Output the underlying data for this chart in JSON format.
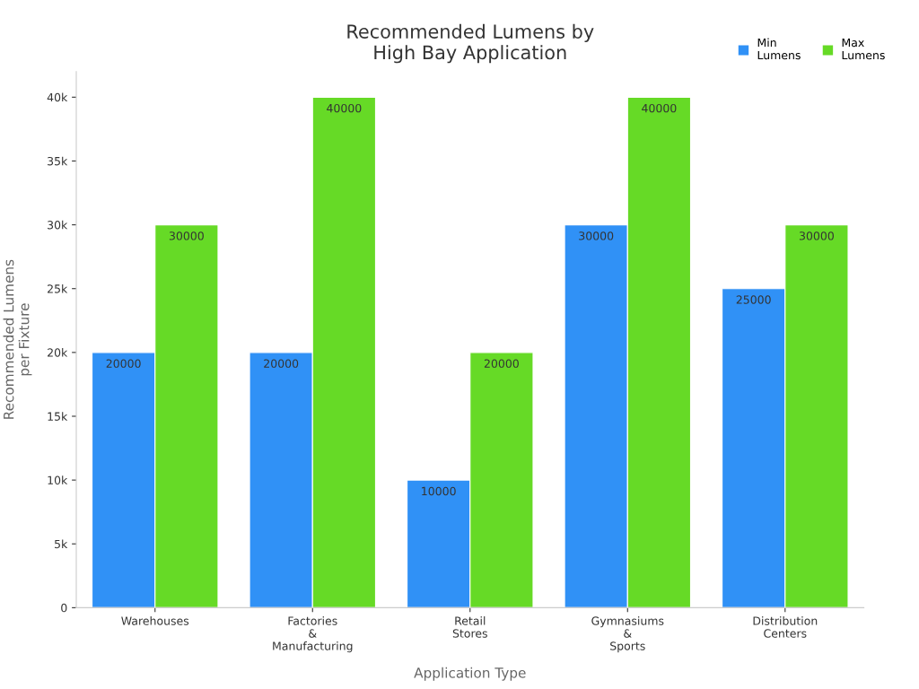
{
  "chart_data": {
    "type": "bar",
    "title": "Recommended Lumens by\nHigh Bay Application",
    "xlabel": "Application Type",
    "ylabel": "Recommended Lumens\nper Fixture",
    "categories": [
      "Warehouses",
      "Factories\n&\nManufacturing",
      "Retail\nStores",
      "Gymnasiums\n&\nSports",
      "Distribution\nCenters"
    ],
    "series": [
      {
        "name": "Min\nLumens",
        "color": "#3091f6",
        "values": [
          20000,
          20000,
          10000,
          30000,
          25000
        ]
      },
      {
        "name": "Max\nLumens",
        "color": "#66da26",
        "values": [
          30000,
          40000,
          20000,
          40000,
          30000
        ]
      }
    ],
    "ylim": [
      0,
      42000
    ],
    "yticks": [
      {
        "value": 0,
        "label": "0"
      },
      {
        "value": 5000,
        "label": "5k"
      },
      {
        "value": 10000,
        "label": "10k"
      },
      {
        "value": 15000,
        "label": "15k"
      },
      {
        "value": 20000,
        "label": "20k"
      },
      {
        "value": 25000,
        "label": "25k"
      },
      {
        "value": 30000,
        "label": "30k"
      },
      {
        "value": 35000,
        "label": "35k"
      },
      {
        "value": 40000,
        "label": "40k"
      }
    ],
    "data_labels": true,
    "legend": "top right",
    "grid": false
  }
}
